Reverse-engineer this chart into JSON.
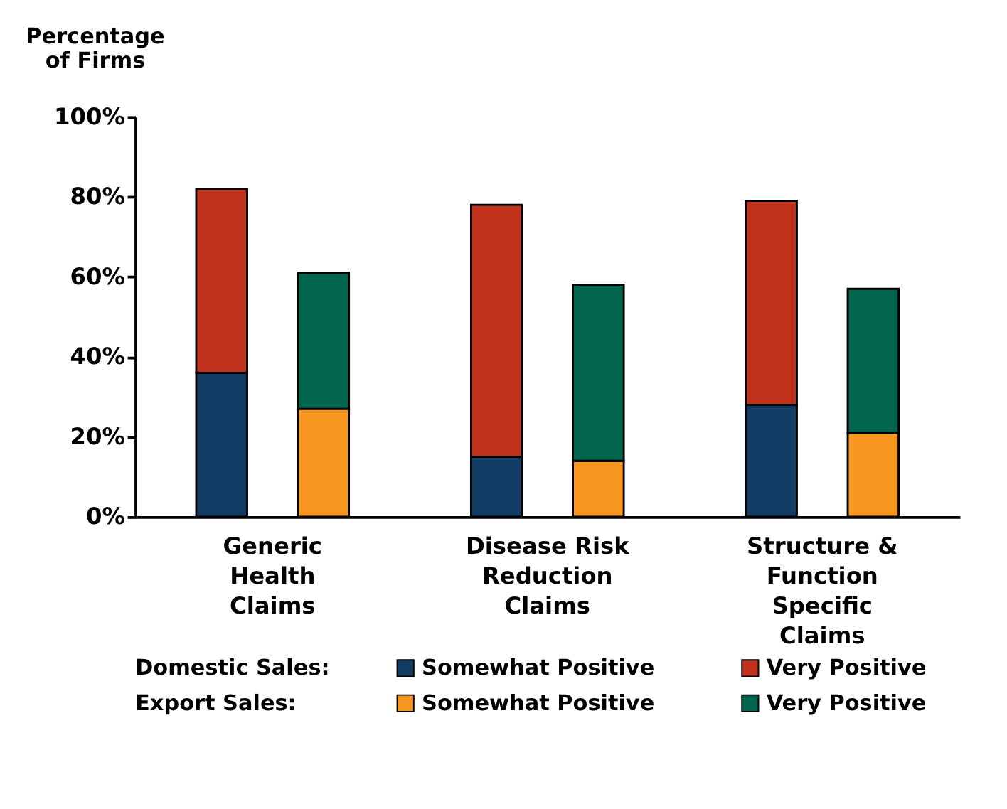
{
  "chart_data": {
    "type": "bar",
    "ylabel": "Percentage of Firms",
    "categories": [
      "Generic Health Claims",
      "Disease Risk Reduction Claims",
      "Structure & Function Specific Claims"
    ],
    "series": [
      {
        "name": "Somewhat Positive",
        "color": "#123c63",
        "values": [
          36,
          15,
          28
        ],
        "base": [
          0,
          0,
          0
        ]
      },
      {
        "name": "Very Positive",
        "color": "#c0311c",
        "values": [
          46,
          63,
          51
        ],
        "base": [
          36,
          15,
          28
        ]
      },
      {
        "name": "Somewhat Positive",
        "color": "#f7971f",
        "values": [
          27,
          14,
          21
        ],
        "base": [
          0,
          0,
          0
        ]
      },
      {
        "name": "Very Positive",
        "color": "#02664e",
        "values": [
          34,
          44,
          36
        ],
        "base": [
          27,
          14,
          21
        ]
      }
    ],
    "annotations": [
      "Domestic Sales:",
      "Export Sales:"
    ],
    "ylim": [
      0,
      100
    ],
    "yticks": [
      {
        "value": 0,
        "label": "0%"
      },
      {
        "value": 20,
        "label": "20%"
      },
      {
        "value": 40,
        "label": "40%"
      },
      {
        "value": 60,
        "label": "60%"
      },
      {
        "value": 80,
        "label": "80%"
      },
      {
        "value": 100,
        "label": "100%"
      }
    ],
    "grid": false,
    "legend": "bottom"
  }
}
